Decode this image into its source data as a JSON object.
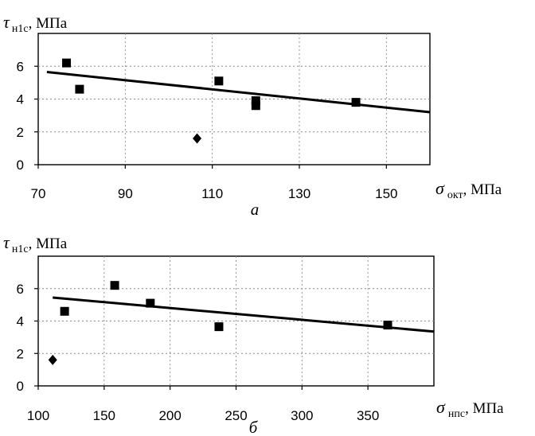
{
  "chart_data": [
    {
      "type": "scatter",
      "panel_label": "а",
      "ylabel": {
        "symbol": "τ",
        "subscript": "н1с",
        "unit": ", МПа"
      },
      "xlabel": {
        "symbol": "σ",
        "subscript": "окт",
        "unit": ", МПа"
      },
      "xlim": [
        70,
        160
      ],
      "ylim": [
        0,
        8
      ],
      "xticks": [
        "70",
        "90",
        "110",
        "130",
        "150"
      ],
      "xtick_values": [
        70,
        90,
        110,
        130,
        150
      ],
      "yticks": [
        "0",
        "2",
        "4",
        "6"
      ],
      "ytick_values": [
        0,
        2,
        4,
        6
      ],
      "grid": true,
      "series": [
        {
          "marker": "square",
          "x": [
            76.5,
            79.5,
            111.5,
            120,
            120,
            143
          ],
          "y": [
            6.2,
            4.6,
            5.1,
            3.6,
            3.9,
            3.8
          ]
        },
        {
          "marker": "diamond",
          "x": [
            106.5
          ],
          "y": [
            1.6
          ]
        }
      ],
      "trendline": {
        "x": [
          72,
          160
        ],
        "y": [
          5.65,
          3.2
        ]
      }
    },
    {
      "type": "scatter",
      "panel_label": "б",
      "ylabel": {
        "symbol": "τ",
        "subscript": "н1с",
        "unit": ", МПа"
      },
      "xlabel": {
        "symbol": "σ",
        "subscript": "нпс",
        "unit": ", МПа"
      },
      "xlim": [
        100,
        400
      ],
      "ylim": [
        0,
        8
      ],
      "xticks": [
        "100",
        "150",
        "200",
        "250",
        "300",
        "350"
      ],
      "xtick_values": [
        100,
        150,
        200,
        250,
        300,
        350
      ],
      "yticks": [
        "0",
        "2",
        "4",
        "6"
      ],
      "ytick_values": [
        0,
        2,
        4,
        6
      ],
      "grid": true,
      "series": [
        {
          "marker": "square",
          "x": [
            120,
            158,
            185,
            237,
            365
          ],
          "y": [
            4.6,
            6.2,
            5.1,
            3.65,
            3.75
          ]
        },
        {
          "marker": "diamond",
          "x": [
            111
          ],
          "y": [
            1.6
          ]
        }
      ],
      "trendline": {
        "x": [
          111,
          400
        ],
        "y": [
          5.45,
          3.35
        ]
      }
    }
  ]
}
